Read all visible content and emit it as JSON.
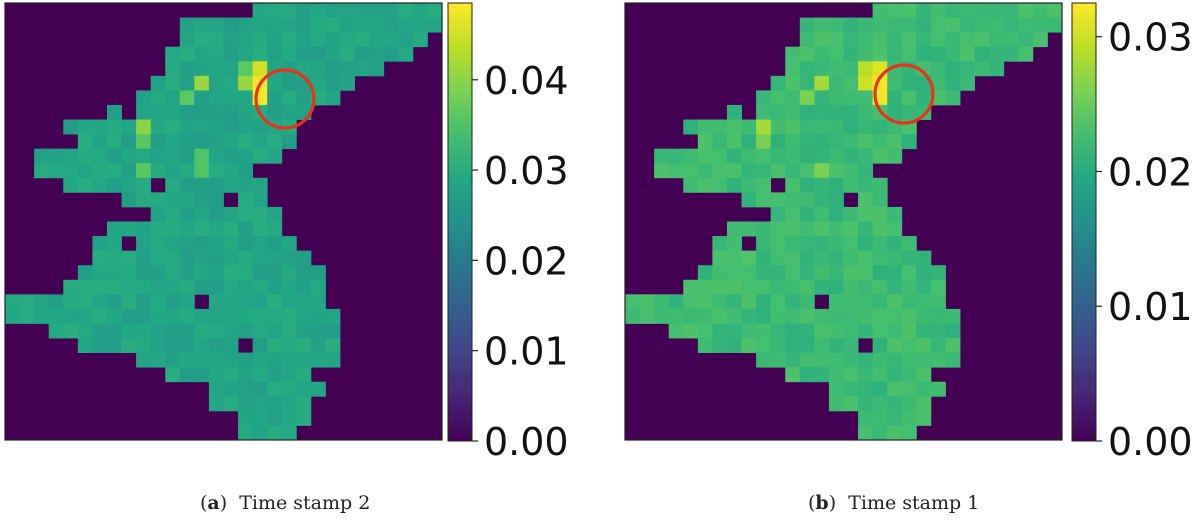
{
  "figure": {
    "panels": [
      {
        "id": "a",
        "caption_letter": "a",
        "caption_text": "Time stamp 2",
        "colorbar_max": 0.0485,
        "highlight_cell": [
          4,
          15
        ]
      },
      {
        "id": "b",
        "caption_letter": "b",
        "caption_text": "Time stamp 1",
        "colorbar_max": 0.0325,
        "highlight_cell": [
          4,
          15
        ]
      }
    ]
  },
  "chart_data": [
    {
      "type": "heatmap",
      "title": "Time stamp 2",
      "colormap": "viridis",
      "grid_size": [
        30,
        30
      ],
      "colorbar": {
        "min": 0.0,
        "max": 0.0485,
        "ticks": [
          "0.00",
          "0.01",
          "0.02",
          "0.03",
          "0.04"
        ],
        "tick_values": [
          0,
          0.01,
          0.02,
          0.03,
          0.04
        ]
      },
      "background_value": 0.0,
      "typical_cell_value": 0.029,
      "hotspots": [
        {
          "row": 4,
          "col": 17,
          "value": 0.045
        },
        {
          "row": 5,
          "col": 17,
          "value": 0.048
        },
        {
          "row": 6,
          "col": 17,
          "value": 0.048
        },
        {
          "row": 5,
          "col": 16,
          "value": 0.041
        },
        {
          "row": 4,
          "col": 16,
          "value": 0.036
        },
        {
          "row": 5,
          "col": 13,
          "value": 0.041
        },
        {
          "row": 6,
          "col": 12,
          "value": 0.036
        },
        {
          "row": 8,
          "col": 9,
          "value": 0.04
        },
        {
          "row": 9,
          "col": 9,
          "value": 0.036
        },
        {
          "row": 11,
          "col": 9,
          "value": 0.036
        },
        {
          "row": 10,
          "col": 13,
          "value": 0.035
        },
        {
          "row": 11,
          "col": 13,
          "value": 0.035
        }
      ],
      "annotation": "red circle around the hotspot near row 5, column 17"
    },
    {
      "type": "heatmap",
      "title": "Time stamp 1",
      "colormap": "viridis",
      "grid_size": [
        30,
        30
      ],
      "colorbar": {
        "min": 0.0,
        "max": 0.0325,
        "ticks": [
          "0.00",
          "0.01",
          "0.02",
          "0.03"
        ],
        "tick_values": [
          0,
          0.01,
          0.02,
          0.03
        ]
      },
      "background_value": 0.0,
      "typical_cell_value": 0.0225,
      "hotspots": [
        {
          "row": 4,
          "col": 17,
          "value": 0.031
        },
        {
          "row": 5,
          "col": 17,
          "value": 0.032
        },
        {
          "row": 6,
          "col": 17,
          "value": 0.032
        },
        {
          "row": 5,
          "col": 16,
          "value": 0.03
        },
        {
          "row": 4,
          "col": 16,
          "value": 0.029
        },
        {
          "row": 5,
          "col": 13,
          "value": 0.028
        },
        {
          "row": 6,
          "col": 12,
          "value": 0.026
        },
        {
          "row": 8,
          "col": 9,
          "value": 0.028
        },
        {
          "row": 9,
          "col": 9,
          "value": 0.026
        },
        {
          "row": 11,
          "col": 13,
          "value": 0.026
        }
      ],
      "annotation": "red circle around the hotspot near row 5, column 17"
    }
  ]
}
